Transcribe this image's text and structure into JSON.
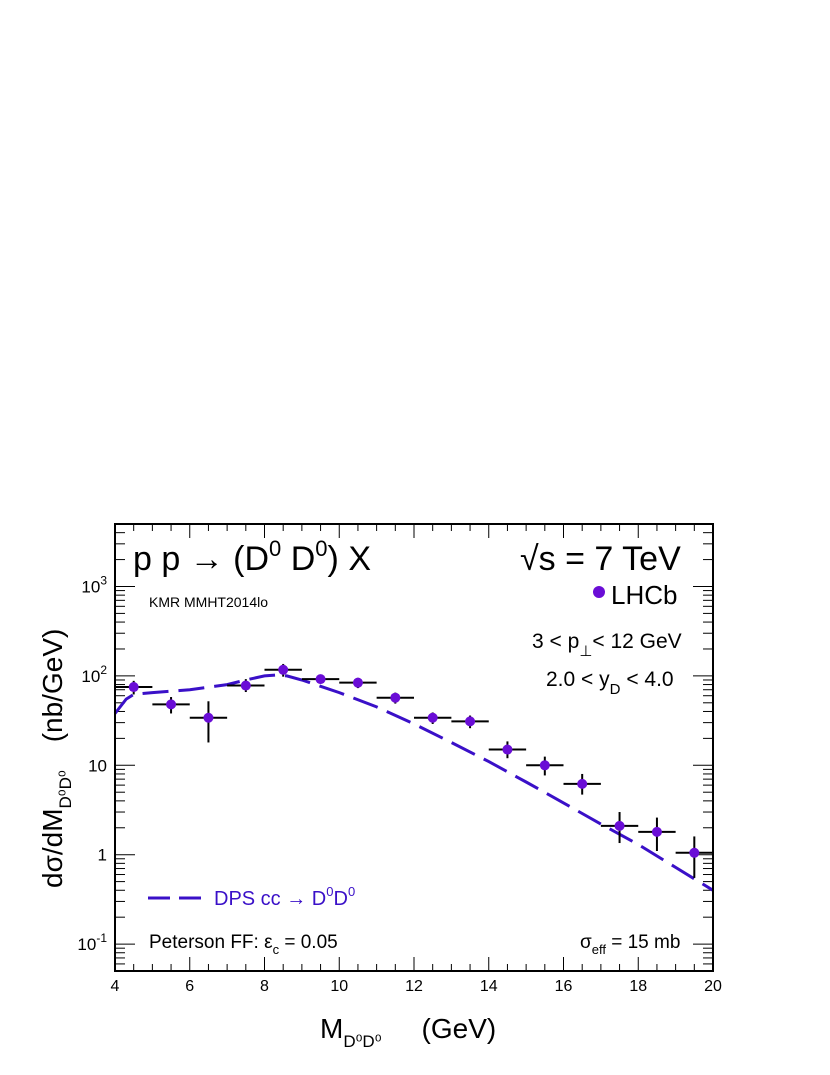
{
  "chart_data": {
    "type": "scatter",
    "title": "p p → (D^0 D^0) X",
    "process": {
      "base": "p p → (D",
      "sup1": "0",
      "mid": " D",
      "sup2": "0",
      "end": ") X"
    },
    "energy": {
      "root": "√",
      "s": "s",
      "rest": " = 7 TeV"
    },
    "model_label": "KMR MMHT2014lo",
    "cuts": {
      "pt": {
        "pre": "3 < p",
        "sub": "⊥",
        "post": "< 12 GeV"
      },
      "y": {
        "pre": "2.0 < y",
        "sub": "D",
        "post": " < 4.0"
      }
    },
    "ff_label": {
      "pre": "Peterson FF: ε",
      "sub": "c",
      "post": " = 0.05"
    },
    "sigma_eff": {
      "pre": "σ",
      "sub": "eff",
      "post": " = 15 mb"
    },
    "xlabel": {
      "main": "M",
      "sub": "D⁰D⁰",
      "unit": "(GeV)"
    },
    "ylabel": {
      "main": "dσ/dM",
      "sub": "D⁰D⁰",
      "unit": "(nb/GeV)"
    },
    "xlim": [
      4,
      20
    ],
    "ylim": [
      0.05,
      5000
    ],
    "yscale": "log",
    "x_ticks": [
      "4",
      "6",
      "8",
      "10",
      "12",
      "14",
      "16",
      "18",
      "20"
    ],
    "y_ticks": [
      {
        "value": 0.1,
        "base": "10",
        "exp": "-1"
      },
      {
        "value": 1,
        "base": "1",
        "exp": ""
      },
      {
        "value": 10,
        "base": "10",
        "exp": ""
      },
      {
        "value": 100,
        "base": "10",
        "exp": "2"
      },
      {
        "value": 1000,
        "base": "10",
        "exp": "3"
      }
    ],
    "series": [
      {
        "name": "LHCb",
        "kind": "points",
        "color": "#6a0dd6",
        "x": [
          4.5,
          5.5,
          6.5,
          7.5,
          8.5,
          9.5,
          10.5,
          11.5,
          12.5,
          13.5,
          14.5,
          15.5,
          16.5,
          17.5,
          18.5,
          19.5
        ],
        "xerr": 0.5,
        "y": [
          75,
          48,
          34,
          78,
          117,
          92,
          84,
          57,
          34,
          31,
          15,
          10,
          6.2,
          2.1,
          1.8,
          1.05
        ],
        "ylow": [
          62,
          38,
          18,
          66,
          98,
          82,
          73,
          49,
          29,
          26,
          12,
          7.7,
          4.7,
          1.35,
          1.1,
          0.55
        ],
        "yhigh": [
          88,
          58,
          52,
          92,
          136,
          103,
          95,
          65,
          39,
          36,
          18.5,
          12.5,
          8,
          3,
          2.6,
          1.6
        ]
      },
      {
        "name": "DPS cc → D⁰D⁰",
        "legend": {
          "pre": "DPS cc → D",
          "sup1": "0",
          "mid": "D",
          "sup2": "0"
        },
        "kind": "line",
        "style": "dashed",
        "color": "#3a10c8",
        "x": [
          4.0,
          4.3,
          4.5,
          5,
          6,
          7,
          7.5,
          8,
          8.3,
          8.6,
          9,
          10,
          11,
          12,
          13,
          14,
          15,
          16,
          17,
          18,
          19,
          20
        ],
        "y": [
          38,
          55,
          62,
          65,
          70,
          80,
          90,
          100,
          102,
          100,
          90,
          65,
          45,
          29,
          18,
          11,
          6.5,
          3.8,
          2.2,
          1.3,
          0.72,
          0.4
        ]
      }
    ]
  }
}
